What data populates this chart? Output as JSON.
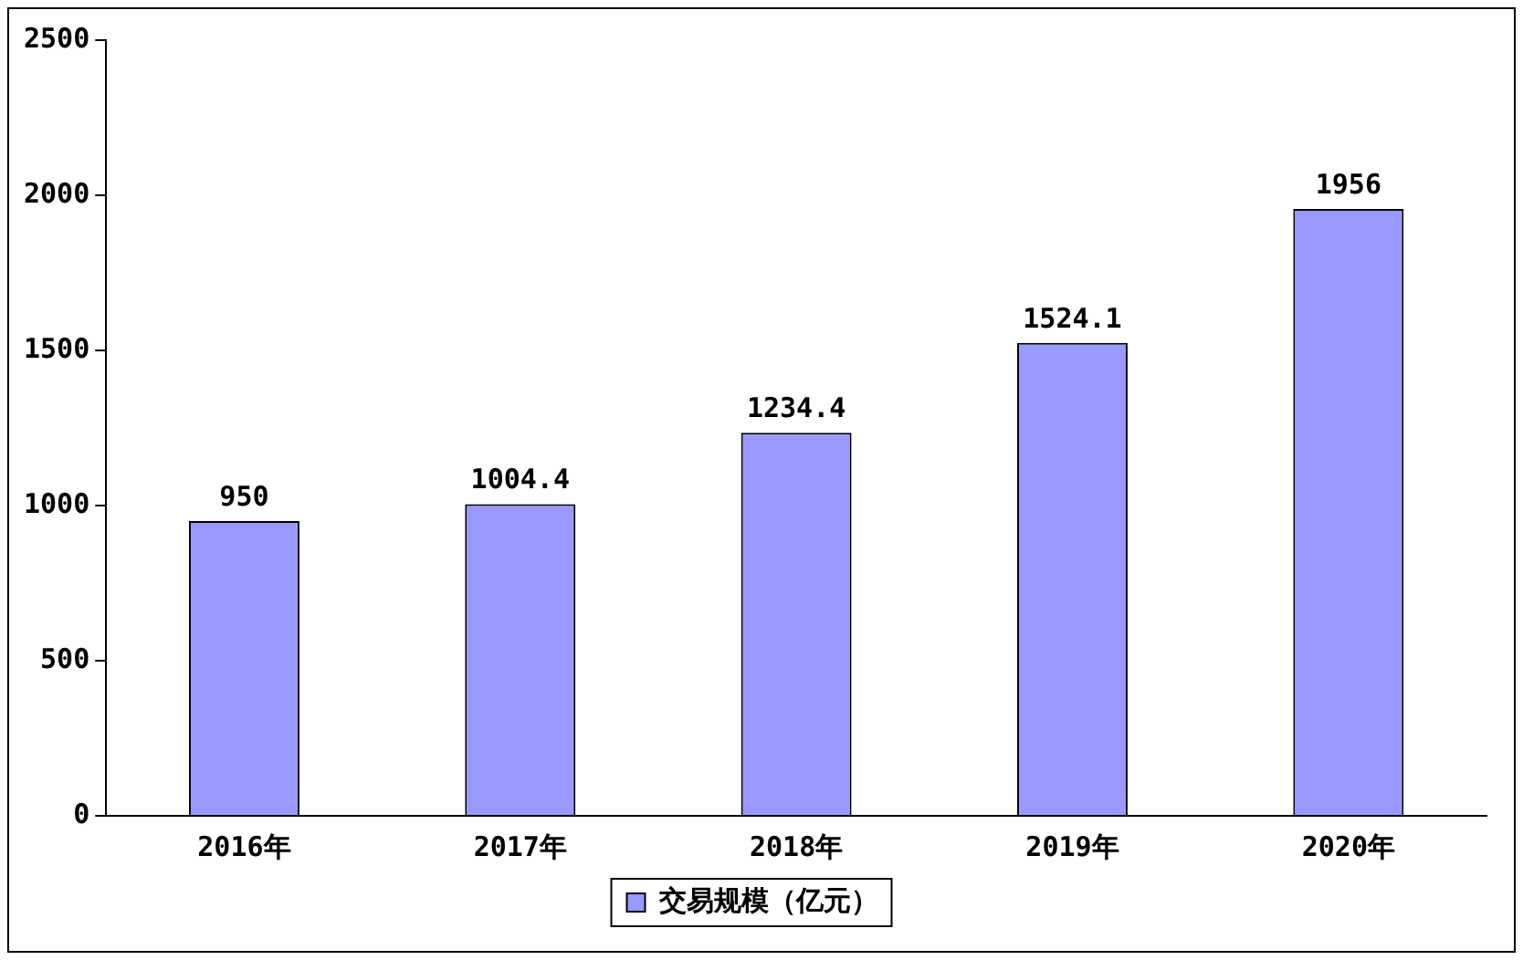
{
  "chart_data": {
    "type": "bar",
    "categories": [
      "2016年",
      "2017年",
      "2018年",
      "2019年",
      "2020年"
    ],
    "series": [
      {
        "name": "交易规模（亿元）",
        "color": "#9999ff",
        "values": [
          950,
          1004.4,
          1234.4,
          1524.1,
          1956
        ]
      }
    ],
    "ylim": [
      0,
      2500
    ],
    "yticks": [
      0,
      500,
      1000,
      1500,
      2000,
      2500
    ],
    "grid": false,
    "legend": "bottom",
    "data_labels": true
  }
}
